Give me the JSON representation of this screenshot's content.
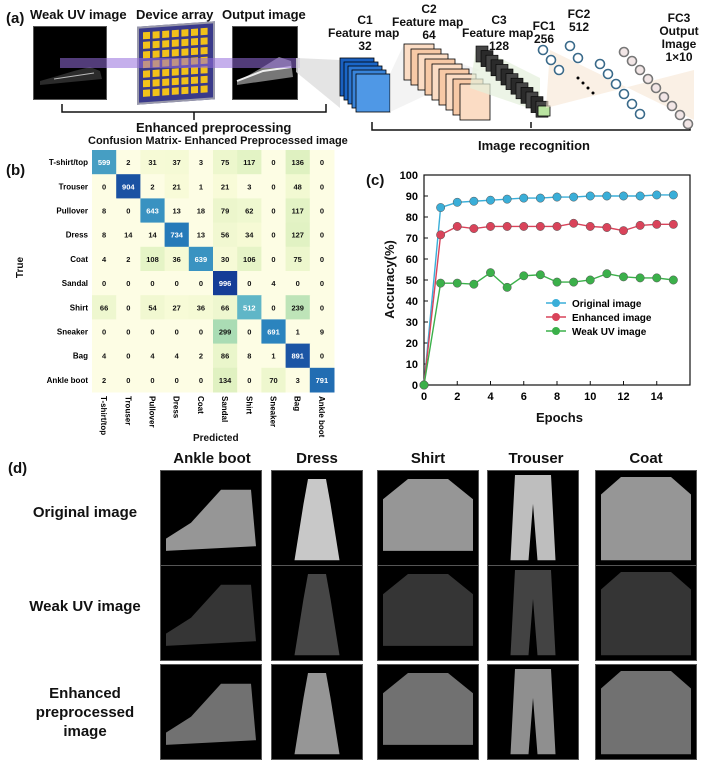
{
  "panel_a": {
    "label": "(a)",
    "weak_uv_label": "Weak UV image",
    "device_array_label": "Device array",
    "output_image_label": "Output image",
    "enhanced_preprocessing_label": "Enhanced preprocessing",
    "image_recognition_label": "Image recognition",
    "layers": [
      {
        "name": "C1",
        "sub": "Feature map",
        "size": "32"
      },
      {
        "name": "C2",
        "sub": "Feature map",
        "size": "64"
      },
      {
        "name": "C3",
        "sub": "Feature map",
        "size": "128"
      },
      {
        "name": "FC1",
        "sub": "",
        "size": "256"
      },
      {
        "name": "FC2",
        "sub": "",
        "size": "512"
      },
      {
        "name": "FC3",
        "sub": "Output Image",
        "size": "1×10"
      }
    ]
  },
  "panel_b": {
    "label": "(b)"
  },
  "panel_c": {
    "label": "(c)"
  },
  "panel_d": {
    "label": "(d)",
    "columns": [
      "Ankle boot",
      "Dress",
      "Shirt",
      "Trouser",
      "Coat"
    ],
    "rows": [
      "Original image",
      "Weak UV image",
      "Enhanced preprocessed image"
    ]
  },
  "chart_data": [
    {
      "type": "heatmap",
      "title": "Confusion Matrix- Enhanced Preprocessed image",
      "xlabel": "Predicted",
      "ylabel": "True",
      "row_labels": [
        "T-shirt/top",
        "Trouser",
        "Pullover",
        "Dress",
        "Coat",
        "Sandal",
        "Shirt",
        "Sneaker",
        "Bag",
        "Ankle boot"
      ],
      "col_labels": [
        "T-shirt/top",
        "Trouser",
        "Pullover",
        "Dress",
        "Coat",
        "Sandal",
        "Shirt",
        "Sneaker",
        "Bag",
        "Ankle boot"
      ],
      "values": [
        [
          599,
          2,
          31,
          37,
          3,
          75,
          117,
          0,
          136,
          0
        ],
        [
          0,
          904,
          2,
          21,
          1,
          21,
          3,
          0,
          48,
          0
        ],
        [
          8,
          0,
          643,
          13,
          18,
          79,
          62,
          0,
          117,
          0
        ],
        [
          8,
          14,
          14,
          734,
          13,
          56,
          34,
          0,
          127,
          0
        ],
        [
          4,
          2,
          108,
          36,
          639,
          30,
          106,
          0,
          75,
          0
        ],
        [
          0,
          0,
          0,
          0,
          0,
          996,
          0,
          4,
          0,
          0
        ],
        [
          66,
          0,
          54,
          27,
          36,
          66,
          512,
          0,
          239,
          0
        ],
        [
          0,
          0,
          0,
          0,
          0,
          299,
          0,
          691,
          1,
          9
        ],
        [
          4,
          0,
          4,
          4,
          2,
          86,
          8,
          1,
          891,
          0
        ],
        [
          2,
          0,
          0,
          0,
          0,
          134,
          0,
          70,
          3,
          791
        ]
      ]
    },
    {
      "type": "line",
      "xlabel": "Epochs",
      "ylabel": "Accuracy(%)",
      "xlim": [
        0,
        16
      ],
      "ylim": [
        0,
        100
      ],
      "xticks": [
        0,
        2,
        4,
        6,
        8,
        10,
        12,
        14
      ],
      "yticks": [
        0,
        10,
        20,
        30,
        40,
        50,
        60,
        70,
        80,
        90,
        100
      ],
      "legend_position": "right",
      "x": [
        0,
        1,
        2,
        3,
        4,
        5,
        6,
        7,
        8,
        9,
        10,
        11,
        12,
        13,
        14,
        15
      ],
      "series": [
        {
          "name": "Original image",
          "color": "#3aaed8",
          "values": [
            0,
            84.5,
            87,
            87.5,
            88,
            88.5,
            89,
            89,
            89.5,
            89.5,
            90,
            90,
            90,
            90,
            90.5,
            90.5
          ]
        },
        {
          "name": "Enhanced image",
          "color": "#d9435a",
          "values": [
            0,
            71.5,
            75.5,
            74.5,
            75.5,
            75.5,
            75.5,
            75.5,
            75.5,
            77,
            75.5,
            75,
            73.5,
            76,
            76.5,
            76.5
          ]
        },
        {
          "name": "Weak UV image",
          "color": "#3bb04a",
          "values": [
            0,
            48.5,
            48.5,
            48,
            53.5,
            46.5,
            52,
            52.5,
            49,
            49,
            50,
            53,
            51.5,
            51,
            51,
            50
          ]
        }
      ]
    }
  ]
}
